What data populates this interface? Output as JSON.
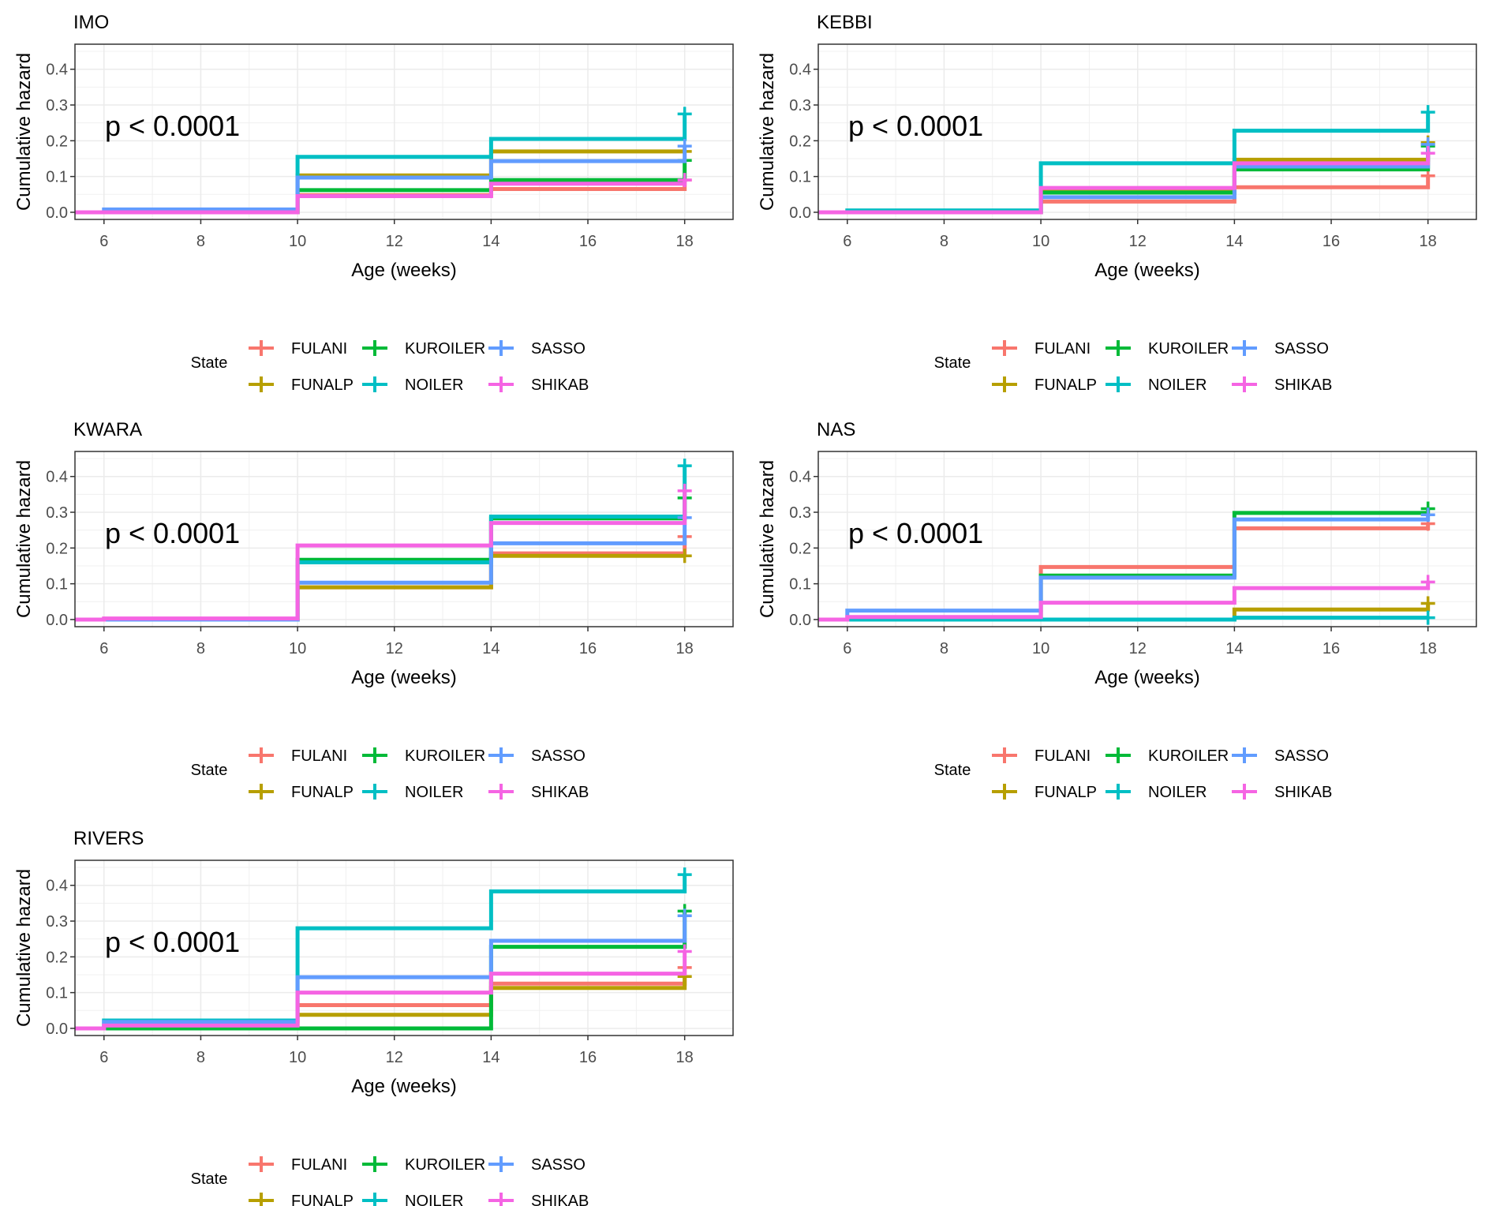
{
  "chart_data": {
    "type": "line",
    "subtype": "step cumulative hazard (faceted)",
    "xlabel": "Age (weeks)",
    "ylabel": "Cumulative hazard",
    "x_ticks": [
      6,
      8,
      10,
      12,
      14,
      16,
      18
    ],
    "y_ticks": [
      0.0,
      0.1,
      0.2,
      0.3,
      0.4
    ],
    "y_tick_labels": [
      "0.0",
      "0.1",
      "0.2",
      "0.3",
      "0.4"
    ],
    "x_tick_labels": [
      "6",
      "8",
      "10",
      "12",
      "14",
      "16",
      "18"
    ],
    "xlim": [
      5.4,
      19.0
    ],
    "ylim": [
      -0.02,
      0.47
    ],
    "grid": true,
    "legend": {
      "title": "State",
      "placement": "bottom",
      "entries": [
        {
          "name": "FULANI",
          "color": "#F8766D"
        },
        {
          "name": "FUNALP",
          "color": "#B79F00"
        },
        {
          "name": "KUROILER",
          "color": "#00BA38"
        },
        {
          "name": "NOILER",
          "color": "#00BFC4"
        },
        {
          "name": "SASSO",
          "color": "#619CFF"
        },
        {
          "name": "SHIKAB",
          "color": "#F564E3"
        }
      ]
    },
    "step_times": [
      6,
      10,
      14,
      18
    ],
    "panels": [
      {
        "title": "IMO",
        "pvalue_text": "p < 0.0001",
        "series": [
          {
            "name": "FULANI",
            "values": [
              0.0,
              0.048,
              0.065
            ],
            "censor_at_18": 0.09
          },
          {
            "name": "FUNALP",
            "values": [
              0.0,
              0.103,
              0.17
            ],
            "censor_at_18": 0.17
          },
          {
            "name": "KUROILER",
            "values": [
              0.0,
              0.062,
              0.09
            ],
            "censor_at_18": 0.145
          },
          {
            "name": "NOILER",
            "values": [
              0.0,
              0.155,
              0.205
            ],
            "censor_at_18": 0.275
          },
          {
            "name": "SASSO",
            "values": [
              0.008,
              0.097,
              0.143
            ],
            "censor_at_18": 0.185
          },
          {
            "name": "SHIKAB",
            "values": [
              0.0,
              0.045,
              0.08
            ],
            "censor_at_18": 0.09
          }
        ]
      },
      {
        "title": "KEBBI",
        "pvalue_text": "p < 0.0001",
        "series": [
          {
            "name": "FULANI",
            "values": [
              0.0,
              0.03,
              0.07
            ],
            "censor_at_18": 0.102
          },
          {
            "name": "FUNALP",
            "values": [
              0.0,
              0.065,
              0.147
            ],
            "censor_at_18": 0.195
          },
          {
            "name": "KUROILER",
            "values": [
              0.0,
              0.055,
              0.12
            ],
            "censor_at_18": 0.185
          },
          {
            "name": "NOILER",
            "values": [
              0.005,
              0.137,
              0.228
            ],
            "censor_at_18": 0.28
          },
          {
            "name": "SASSO",
            "values": [
              0.0,
              0.042,
              0.128
            ],
            "censor_at_18": 0.19
          },
          {
            "name": "SHIKAB",
            "values": [
              0.0,
              0.068,
              0.137
            ],
            "censor_at_18": 0.165
          }
        ]
      },
      {
        "title": "KWARA",
        "pvalue_text": "p < 0.0001",
        "series": [
          {
            "name": "FULANI",
            "values": [
              0.0,
              0.09,
              0.185
            ],
            "censor_at_18": 0.232
          },
          {
            "name": "FUNALP",
            "values": [
              0.0,
              0.09,
              0.178
            ],
            "censor_at_18": 0.178
          },
          {
            "name": "KUROILER",
            "values": [
              0.0,
              0.167,
              0.283
            ],
            "censor_at_18": 0.34
          },
          {
            "name": "NOILER",
            "values": [
              0.0,
              0.16,
              0.288
            ],
            "censor_at_18": 0.43
          },
          {
            "name": "SASSO",
            "values": [
              0.0,
              0.103,
              0.213
            ],
            "censor_at_18": 0.285
          },
          {
            "name": "SHIKAB",
            "values": [
              0.003,
              0.207,
              0.27
            ],
            "censor_at_18": 0.36
          }
        ]
      },
      {
        "title": "NAS",
        "pvalue_text": "p < 0.0001",
        "series": [
          {
            "name": "FULANI",
            "values": [
              0.0,
              0.147,
              0.255
            ],
            "censor_at_18": 0.268
          },
          {
            "name": "FUNALP",
            "values": [
              0.0,
              0.0,
              0.028
            ],
            "censor_at_18": 0.045
          },
          {
            "name": "KUROILER",
            "values": [
              0.0,
              0.123,
              0.298
            ],
            "censor_at_18": 0.31
          },
          {
            "name": "NOILER",
            "values": [
              0.0,
              0.0,
              0.005
            ],
            "censor_at_18": 0.005
          },
          {
            "name": "SASSO",
            "values": [
              0.025,
              0.117,
              0.28
            ],
            "censor_at_18": 0.293
          },
          {
            "name": "SHIKAB",
            "values": [
              0.007,
              0.047,
              0.088
            ],
            "censor_at_18": 0.105
          }
        ]
      },
      {
        "title": "RIVERS",
        "pvalue_text": "p < 0.0001",
        "series": [
          {
            "name": "FULANI",
            "values": [
              0.0,
              0.065,
              0.125
            ],
            "censor_at_18": 0.17
          },
          {
            "name": "FUNALP",
            "values": [
              0.0,
              0.038,
              0.113
            ],
            "censor_at_18": 0.145
          },
          {
            "name": "KUROILER",
            "values": [
              0.0,
              0.0,
              0.228
            ],
            "censor_at_18": 0.328
          },
          {
            "name": "NOILER",
            "values": [
              0.022,
              0.28,
              0.383
            ],
            "censor_at_18": 0.43
          },
          {
            "name": "SASSO",
            "values": [
              0.018,
              0.143,
              0.245
            ],
            "censor_at_18": 0.315
          },
          {
            "name": "SHIKAB",
            "values": [
              0.008,
              0.1,
              0.153
            ],
            "censor_at_18": 0.215
          }
        ]
      }
    ]
  }
}
